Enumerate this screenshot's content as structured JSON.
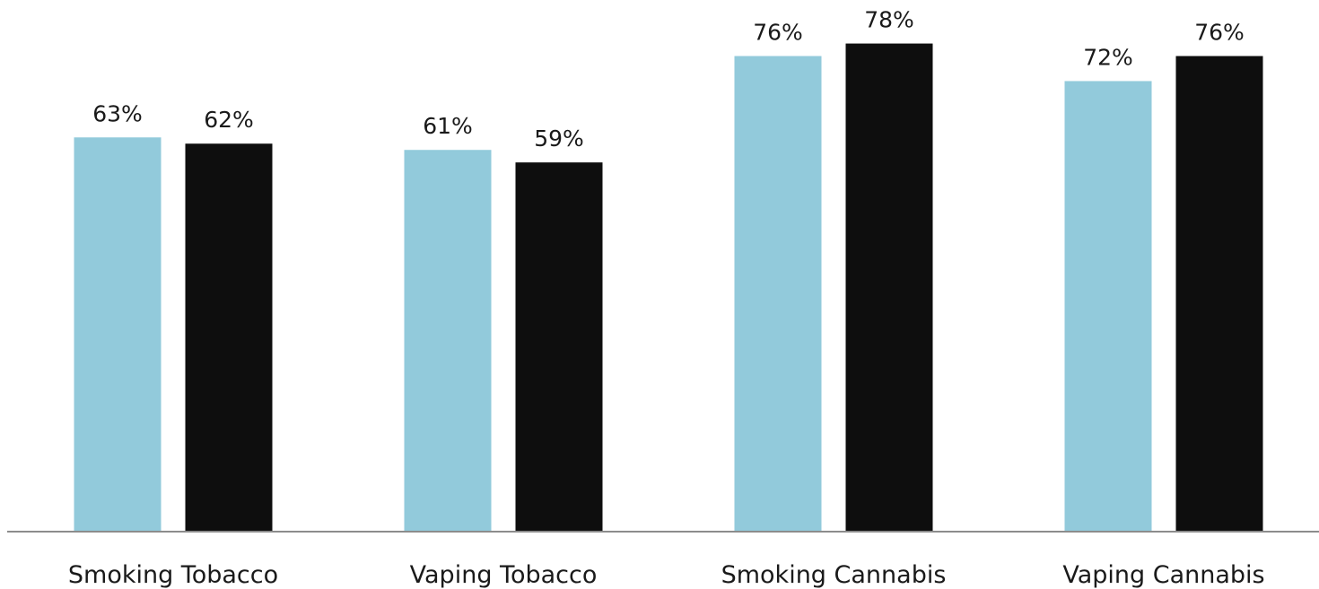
{
  "chart_data": {
    "type": "bar",
    "title": "",
    "xlabel": "",
    "ylabel": "",
    "ylim": [
      0,
      100
    ],
    "grid": false,
    "legend": "none",
    "categories": [
      "Smoking Tobacco",
      "Vaping Tobacco",
      "Smoking Cannabis",
      "Vaping Cannabis"
    ],
    "series": [
      {
        "color": "#92CADB",
        "values": [
          63,
          61,
          76,
          72
        ],
        "labels": [
          "63%",
          "61%",
          "76%",
          "72%"
        ]
      },
      {
        "color": "#0E0E0E",
        "values": [
          62,
          59,
          78,
          76
        ],
        "labels": [
          "62%",
          "59%",
          "78%",
          "76%"
        ]
      }
    ],
    "axis_color": "#8C8C8C"
  }
}
